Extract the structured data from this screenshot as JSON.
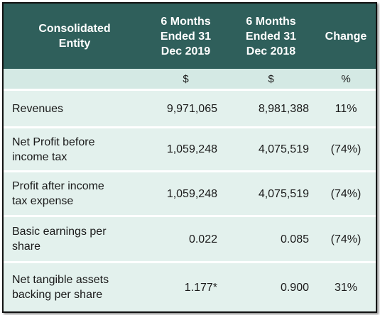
{
  "table": {
    "header": [
      [
        "Consolidated",
        "Entity"
      ],
      [
        "6 Months",
        "Ended 31",
        "Dec 2019"
      ],
      [
        "6 Months",
        "Ended 31",
        "Dec 2018"
      ],
      [
        "Change"
      ]
    ],
    "units": [
      "$",
      "$",
      "%"
    ],
    "rows": [
      [
        [
          "Revenues"
        ],
        "9,971,065",
        "8,981,388",
        "11%"
      ],
      [
        [
          "Net Profit before",
          "income tax"
        ],
        "1,059,248",
        "4,075,519",
        "(74%)"
      ],
      [
        [
          "Profit after income",
          "tax expense"
        ],
        "1,059,248",
        "4,075,519",
        "(74%)"
      ],
      [
        [
          "Basic earnings per",
          "share"
        ],
        "0.022",
        "0.085",
        "(74%)"
      ],
      [
        [
          "Net tangible assets",
          "backing per share"
        ],
        "1.177*",
        "0.900",
        "31%"
      ]
    ]
  }
}
